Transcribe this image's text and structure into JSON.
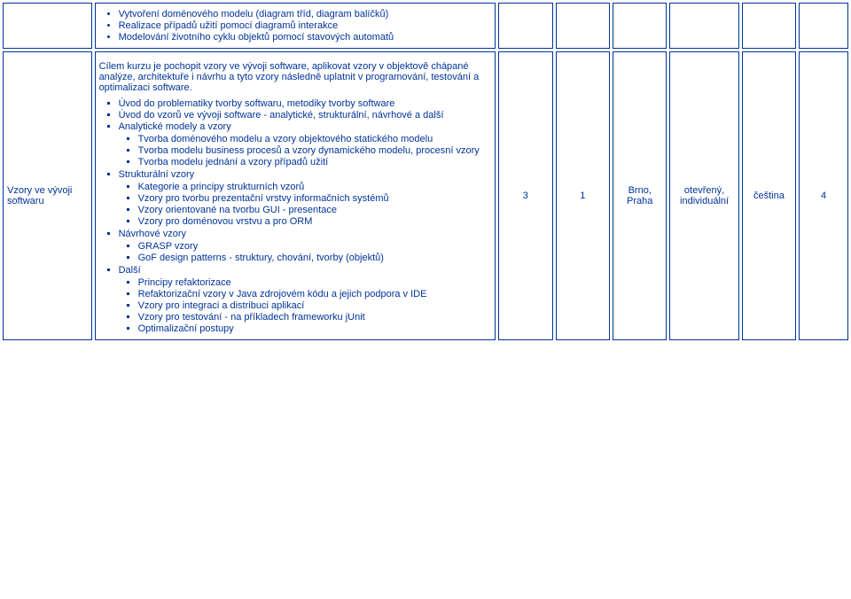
{
  "row1": {
    "content": {
      "items": [
        "Vytvoření doménového modelu (diagram tříd, diagram balíčků)",
        "Realizace případů užití pomocí diagramů interakce",
        "Modelování životního cyklu objektů pomocí stavových automatů"
      ]
    }
  },
  "row2": {
    "courseName": "Vzory ve vývoji softwaru",
    "intro": "Cílem kurzu je pochopit vzory ve vývoji software, aplikovat vzory v objektově chápané analýze, architektuře i návrhu a tyto vzory následně uplatnit v programování, testování a optimalizaci software.",
    "level1": {
      "i0": "Úvod do problematiky tvorby softwaru, metodiky tvorby software",
      "i1": "Úvod do vzorů ve vývoji software - analytické, strukturální, návrhové a další",
      "i2": "Analytické modely a vzory",
      "i3": "Strukturální vzory",
      "i4": "Návrhové vzory",
      "i5": "Další"
    },
    "level2_analytic": {
      "a0": "Tvorba doménového modelu a vzory objektového statického modelu",
      "a1": "Tvorba modelu business procesů a vzory dynamického modelu, procesní vzory",
      "a2": "Tvorba modelu jednání a vzory případů užití"
    },
    "level2_structural": {
      "s0": "Kategorie a principy strukturních vzorů",
      "s1": "Vzory pro tvorbu prezentační vrstvy informačních systémů",
      "s2": "Vzory orientované na tvorbu GUI - presentace",
      "s3": "Vzory pro doménovou vrstvu a pro ORM"
    },
    "level2_design": {
      "d0": "GRASP vzory",
      "d1": "GoF design patterns - struktury, chování, tvorby (objektů)"
    },
    "level2_other": {
      "o0": "Principy refaktorizace",
      "o1": "Refaktorizační vzory v Java zdrojovém kódu a jejich podpora v IDE",
      "o2": "Vzory pro integraci a distribuci aplikací",
      "o3": "Vzory pro testování - na příkladech frameworku jUnit",
      "o4": "Optimalizační postupy"
    },
    "col3": "3",
    "col4": "1",
    "col5": "Brno, Praha",
    "col6": "otevřený, individuální",
    "col7": "čeština",
    "col8": "4"
  }
}
